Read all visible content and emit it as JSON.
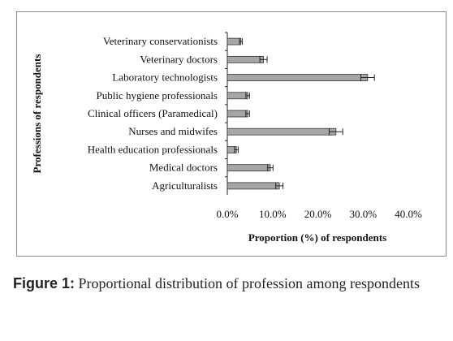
{
  "chart_data": {
    "type": "bar",
    "orientation": "horizontal",
    "categories": [
      "Veterinary conservationists",
      "Veterinary doctors",
      "Laboratory technologists",
      "Public hygiene professionals",
      "Clinical officers (Paramedical)",
      "Nurses and midwifes",
      "Health education professionals",
      "Medical doctors",
      "Agriculturalists"
    ],
    "values": [
      3.0,
      8.0,
      31.0,
      4.5,
      4.5,
      24.0,
      2.0,
      9.5,
      11.5
    ],
    "errors": [
      0.3,
      0.8,
      1.5,
      0.4,
      0.4,
      1.5,
      0.4,
      0.6,
      0.8
    ],
    "xlabel": "Proportion (%) of respondents",
    "ylabel": "Professions of respondents",
    "xlim": [
      0,
      40
    ],
    "xticks": [
      "0.0%",
      "10.0%",
      "20.0%",
      "30.0%",
      "40.0%"
    ],
    "bar_color": "#a6a6a6",
    "grid": false
  },
  "caption": {
    "label": "Figure 1:",
    "text": "Proportional distribution of profession among respondents"
  }
}
